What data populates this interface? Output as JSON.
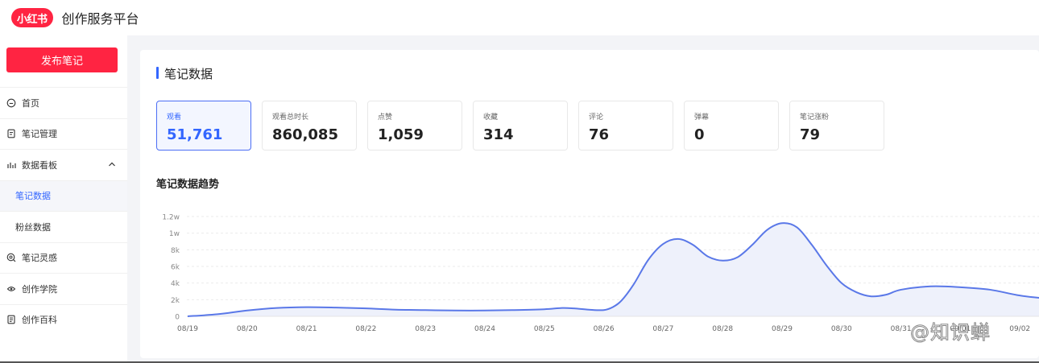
{
  "header": {
    "logo_text": "小红书",
    "title": "创作服务平台"
  },
  "sidebar": {
    "publish_label": "发布笔记",
    "items": [
      {
        "label": "首页",
        "icon": "home-icon"
      },
      {
        "label": "笔记管理",
        "icon": "note-icon"
      },
      {
        "label": "数据看板",
        "icon": "bar-chart-icon"
      },
      {
        "label": "笔记数据"
      },
      {
        "label": "粉丝数据"
      },
      {
        "label": "笔记灵感",
        "icon": "lightbulb-icon"
      },
      {
        "label": "创作学院",
        "icon": "graduation-icon"
      },
      {
        "label": "创作百科",
        "icon": "book-icon"
      }
    ]
  },
  "panel": {
    "title": "笔记数据",
    "trend_title": "笔记数据趋势"
  },
  "metrics": [
    {
      "label": "观看",
      "value": "51,761"
    },
    {
      "label": "观看总时长",
      "value": "860,085"
    },
    {
      "label": "点赞",
      "value": "1,059"
    },
    {
      "label": "收藏",
      "value": "314"
    },
    {
      "label": "评论",
      "value": "76"
    },
    {
      "label": "弹幕",
      "value": "0"
    },
    {
      "label": "笔记涨粉",
      "value": "79"
    }
  ],
  "colors": {
    "accent": "#3366ff",
    "brand": "#ff2442",
    "line": "#5a78e8",
    "fill": "#eef1fb"
  },
  "chart_data": {
    "type": "line",
    "categories": [
      "08/19",
      "08/20",
      "08/21",
      "08/22",
      "08/23",
      "08/24",
      "08/25",
      "08/26",
      "08/27",
      "08/28",
      "08/29",
      "08/30",
      "08/31",
      "09/01",
      "09/02"
    ],
    "y_ticks": [
      "0",
      "2k",
      "4k",
      "6k",
      "8k",
      "1w",
      "1.2w"
    ],
    "ylim": [
      0,
      12000
    ],
    "x": [
      0,
      0.5,
      1,
      1.5,
      2,
      2.5,
      3,
      3.5,
      4,
      4.5,
      5,
      5.5,
      6,
      6.3,
      6.5,
      6.75,
      7,
      7.15,
      7.3,
      7.5,
      7.75,
      8,
      8.25,
      8.5,
      8.75,
      9,
      9.25,
      9.5,
      9.75,
      10,
      10.25,
      10.5,
      10.75,
      11,
      11.25,
      11.5,
      11.75,
      12,
      12.5,
      13,
      13.5,
      14,
      14.5
    ],
    "values": [
      0,
      250,
      700,
      1000,
      1100,
      1050,
      950,
      800,
      750,
      700,
      700,
      750,
      850,
      1000,
      950,
      800,
      750,
      1100,
      1900,
      3800,
      6800,
      8700,
      9300,
      8600,
      7200,
      6700,
      7100,
      8600,
      10400,
      11200,
      10700,
      8600,
      6100,
      4000,
      2900,
      2400,
      2600,
      3200,
      3600,
      3500,
      3200,
      2500,
      2100
    ],
    "grid": true,
    "fill": true
  },
  "watermark": "@知识蝉"
}
